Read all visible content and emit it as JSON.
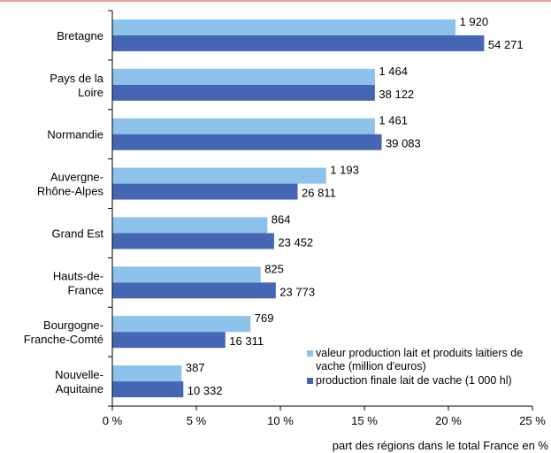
{
  "chart_data": {
    "type": "bar",
    "orientation": "horizontal",
    "categories": [
      [
        "Bretagne"
      ],
      [
        "Pays de la",
        "Loire"
      ],
      [
        "Normandie"
      ],
      [
        "Auvergne-",
        "Rhône-Alpes"
      ],
      [
        "Grand Est"
      ],
      [
        "Hauts-de-",
        "France"
      ],
      [
        "Bourgogne-",
        "Franche-Comté"
      ],
      [
        "Nouvelle-",
        "Aquitaine"
      ]
    ],
    "series": [
      {
        "name": "valeur production lait et produits laitiers de vache (million d'euros)",
        "color": "#8dc3ea",
        "values": [
          20.4,
          15.6,
          15.6,
          12.7,
          9.2,
          8.8,
          8.2,
          4.1
        ],
        "labels": [
          "1 920",
          "1 464",
          "1 461",
          "1 193",
          "864",
          "825",
          "769",
          "387"
        ]
      },
      {
        "name": "production finale lait de vache (1 000 hl)",
        "color": "#4566b2",
        "values": [
          22.1,
          15.6,
          16.0,
          11.0,
          9.6,
          9.7,
          6.7,
          4.2
        ],
        "labels": [
          "54 271",
          "38 122",
          "39 083",
          "26 811",
          "23 452",
          "23 773",
          "16 311",
          "10 332"
        ]
      }
    ],
    "xlim": [
      0,
      25
    ],
    "xticks": [
      "0 %",
      "5 %",
      "10 %",
      "15 %",
      "20 %",
      "25 %"
    ],
    "xlabel": "part des régions dans le total France en %",
    "legend_position": "bottom-right"
  }
}
